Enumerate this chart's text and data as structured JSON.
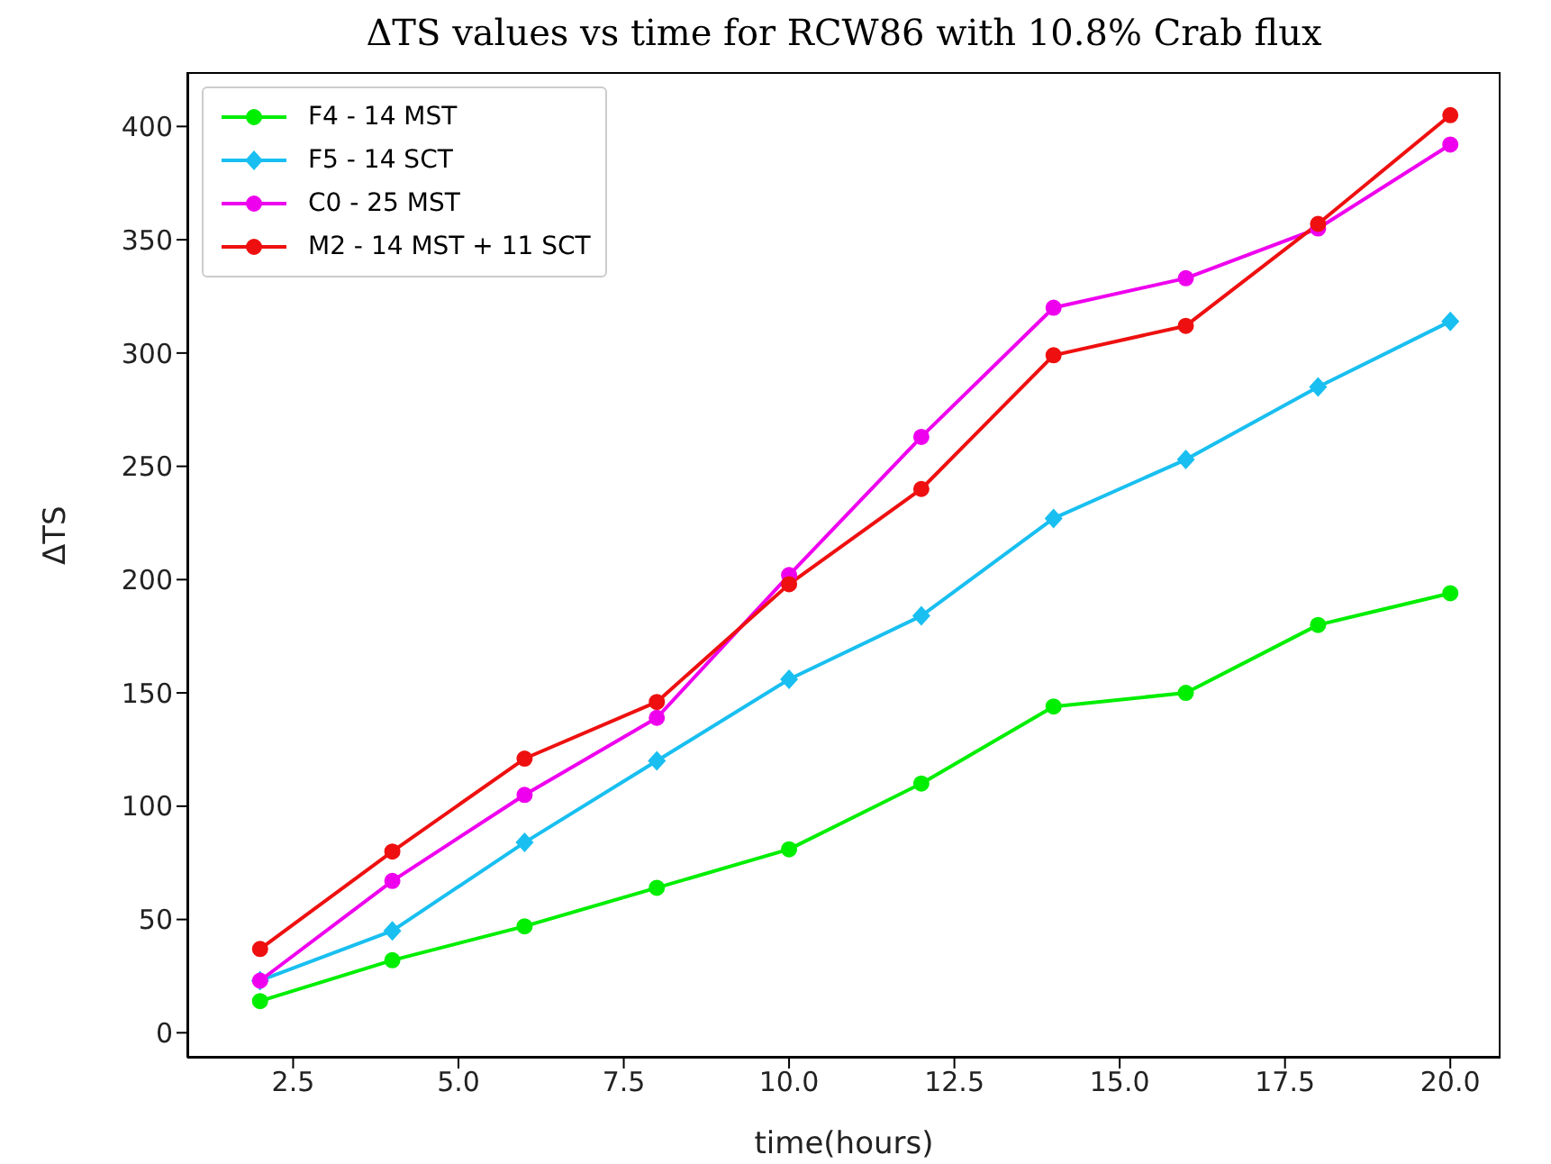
{
  "chart_data": {
    "type": "line",
    "title": "ΔTS values vs time for RCW86 with 10.8% Crab flux",
    "xlabel": "time(hours)",
    "ylabel": "ΔTS",
    "x": [
      2,
      4,
      6,
      8,
      10,
      12,
      14,
      16,
      18,
      20
    ],
    "series": [
      {
        "name": "F4 - 14 MST",
        "color": "#00ee00",
        "marker": "circle",
        "values": [
          14,
          32,
          47,
          64,
          81,
          110,
          144,
          150,
          180,
          194
        ]
      },
      {
        "name": "F5 - 14 SCT",
        "color": "#19bff0",
        "marker": "diamond",
        "values": [
          23,
          45,
          84,
          120,
          156,
          184,
          227,
          253,
          285,
          314
        ]
      },
      {
        "name": "C0 - 25 MST",
        "color": "#ee00ee",
        "marker": "circle",
        "values": [
          23,
          67,
          105,
          139,
          202,
          263,
          320,
          333,
          355,
          392
        ]
      },
      {
        "name": "M2 - 14 MST + 11 SCT",
        "color": "#ee1010",
        "marker": "circle",
        "values": [
          37,
          80,
          121,
          146,
          198,
          240,
          299,
          312,
          357,
          405
        ]
      }
    ],
    "xlim": [
      0.9,
      20.76
    ],
    "xticks": [
      {
        "value": 2.5,
        "label": "2.5"
      },
      {
        "value": 5,
        "label": "5.0"
      },
      {
        "value": 7.5,
        "label": "7.5"
      },
      {
        "value": 10,
        "label": "10.0"
      },
      {
        "value": 12.5,
        "label": "12.5"
      },
      {
        "value": 15,
        "label": "15.0"
      },
      {
        "value": 17.5,
        "label": "17.5"
      },
      {
        "value": 20,
        "label": "20.0"
      }
    ],
    "ylim": [
      -11,
      424
    ],
    "yticks": [
      0,
      50,
      100,
      150,
      200,
      250,
      300,
      350,
      400
    ],
    "legend": "top left",
    "grid": false,
    "line_style": "solid"
  }
}
